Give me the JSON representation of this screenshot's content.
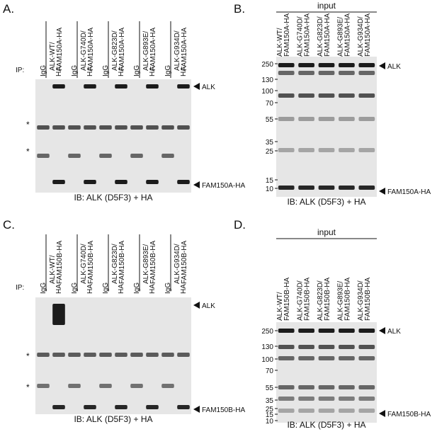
{
  "panels": [
    {
      "label": "A.",
      "ip_label": "IP:",
      "ip": [
        "IgG",
        "HA",
        "IgG",
        "HA",
        "IgG",
        "HA",
        "IgG",
        "HA",
        "IgG",
        "HA"
      ],
      "lanes": [
        [
          "ALK-WT/",
          "FAM150A-HA"
        ],
        [
          "ALK-G740D/",
          "FAM150A-HA"
        ],
        [
          "ALK-G823D/",
          "FAM150A-HA"
        ],
        [
          "ALK-G893E/",
          "FAM150A-HA"
        ],
        [
          "ALK-G934D/",
          "FAM150A-HA"
        ]
      ],
      "stars": [
        "*",
        "*"
      ],
      "arrows": [
        "ALK",
        "FAM150A-HA"
      ],
      "caption": "IB: ALK (D5F3) + HA"
    },
    {
      "label": "B.",
      "header": "input",
      "lanes": [
        [
          "ALK-WT/",
          "FAM150A-HA"
        ],
        [
          "ALK-G740D/",
          "FAM150A-HA"
        ],
        [
          "ALK-G823D/",
          "FAM150A-HA"
        ],
        [
          "ALK-G893E/",
          "FAM150A-HA"
        ],
        [
          "ALK-G934D/",
          "FAM150A-HA"
        ]
      ],
      "markers": [
        250,
        130,
        100,
        70,
        55,
        35,
        25,
        15,
        10
      ],
      "arrows": [
        "ALK",
        "FAM150A-HA"
      ],
      "caption": "IB: ALK (D5F3) + HA"
    },
    {
      "label": "C.",
      "ip_label": "IP:",
      "ip": [
        "IgG",
        "HA",
        "IgG",
        "HA",
        "IgG",
        "HA",
        "IgG",
        "HA",
        "IgG",
        "HA"
      ],
      "lanes": [
        [
          "ALK-WT/",
          "FAM150B-HA"
        ],
        [
          "ALK-G740D/",
          "FAM150B-HA"
        ],
        [
          "ALK-G823D/",
          "FAM150B-HA"
        ],
        [
          "ALK-G893E/",
          "FAM150B-HA"
        ],
        [
          "ALK-G934D/",
          "FAM150B-HA"
        ]
      ],
      "stars": [
        "*",
        "*"
      ],
      "arrows": [
        "ALK",
        "FAM150B-HA"
      ],
      "caption": "IB: ALK (D5F3) + HA"
    },
    {
      "label": "D.",
      "header": "input",
      "lanes": [
        [
          "ALK-WT/",
          "FAM150B-HA"
        ],
        [
          "ALK-G740D/",
          "FAM150B-HA"
        ],
        [
          "ALK-G823D/",
          "FAM150B-HA"
        ],
        [
          "ALK-G893E/",
          "FAM150B-HA"
        ],
        [
          "ALK-G934D/",
          "FAM150B-HA"
        ]
      ],
      "markers": [
        250,
        130,
        100,
        70,
        55,
        35,
        25,
        15,
        10
      ],
      "arrows": [
        "ALK",
        "FAM150B-HA"
      ],
      "caption": "IB: ALK (D5F3) + HA"
    }
  ]
}
